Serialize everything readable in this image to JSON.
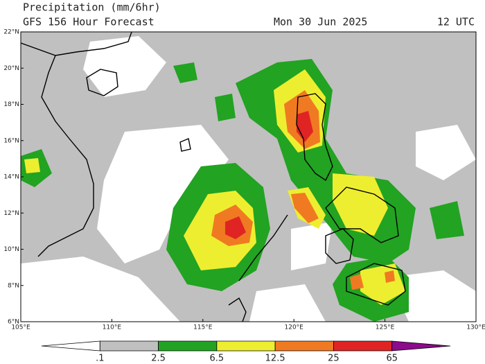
{
  "header": {
    "title": "Precipitation (mm/6hr)",
    "subtitle": "GFS 156 Hour Forecast",
    "date": "Mon 30 Jun 2025",
    "time": "12 UTC"
  },
  "map": {
    "lat_ticks": [
      {
        "value": 6,
        "label": "6°N"
      },
      {
        "value": 8,
        "label": "8°N"
      },
      {
        "value": 10,
        "label": "10°N"
      },
      {
        "value": 12,
        "label": "12°N"
      },
      {
        "value": 14,
        "label": "14°N"
      },
      {
        "value": 16,
        "label": "16°N"
      },
      {
        "value": 18,
        "label": "18°N"
      },
      {
        "value": 20,
        "label": "20°N"
      },
      {
        "value": 22,
        "label": "22°N"
      }
    ],
    "lon_ticks": [
      {
        "value": 105,
        "label": "105°E"
      },
      {
        "value": 110,
        "label": "110°E"
      },
      {
        "value": 115,
        "label": "115°E"
      },
      {
        "value": 120,
        "label": "120°E"
      },
      {
        "value": 125,
        "label": "125°E"
      },
      {
        "value": 130,
        "label": "130°E"
      }
    ]
  },
  "colorbar": {
    "levels": [
      {
        "value": 0.1,
        "label": ".1"
      },
      2.5,
      6.5,
      12.5,
      25,
      65
    ],
    "colors": [
      "#ffffff",
      "#c0c0c0",
      "#22a322",
      "#eeee30",
      "#f07a22",
      "#e02424",
      "#8c0a8c"
    ]
  }
}
